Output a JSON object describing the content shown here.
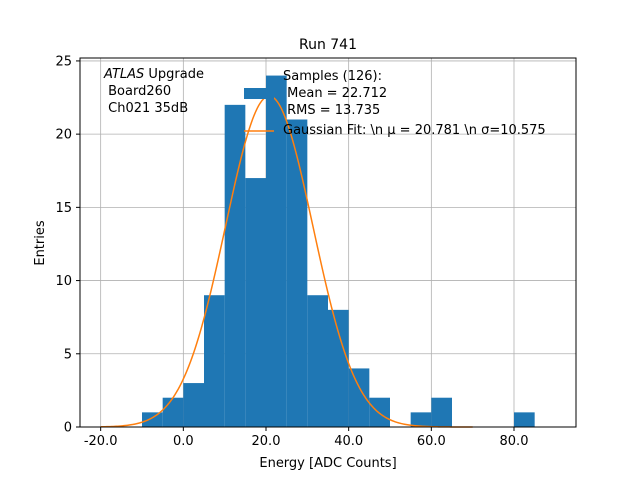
{
  "chart_data": {
    "type": "bar",
    "title": "Run 741",
    "xlabel": "Energy [ADC Counts]",
    "ylabel": "Entries",
    "xlim": [
      -25,
      95
    ],
    "ylim": [
      0,
      25.2
    ],
    "grid": true,
    "x_ticks": [
      -20,
      0,
      20,
      40,
      60,
      80
    ],
    "x_tick_labels": [
      "-20.0",
      "0.0",
      "20.0",
      "40.0",
      "60.0",
      "80.0"
    ],
    "y_ticks": [
      0,
      5,
      10,
      15,
      20,
      25
    ],
    "y_tick_labels": [
      "0",
      "5",
      "10",
      "15",
      "20",
      "25"
    ],
    "bins": [
      {
        "x0": -10,
        "x1": -5,
        "count": 1
      },
      {
        "x0": -5,
        "x1": 0,
        "count": 2
      },
      {
        "x0": 0,
        "x1": 5,
        "count": 3
      },
      {
        "x0": 5,
        "x1": 10,
        "count": 9
      },
      {
        "x0": 10,
        "x1": 15,
        "count": 22
      },
      {
        "x0": 15,
        "x1": 20,
        "count": 17
      },
      {
        "x0": 20,
        "x1": 25,
        "count": 24
      },
      {
        "x0": 25,
        "x1": 30,
        "count": 21
      },
      {
        "x0": 30,
        "x1": 35,
        "count": 9
      },
      {
        "x0": 35,
        "x1": 40,
        "count": 8
      },
      {
        "x0": 40,
        "x1": 45,
        "count": 4
      },
      {
        "x0": 45,
        "x1": 50,
        "count": 2
      },
      {
        "x0": 55,
        "x1": 60,
        "count": 1
      },
      {
        "x0": 60,
        "x1": 65,
        "count": 2
      },
      {
        "x0": 80,
        "x1": 85,
        "count": 1
      }
    ],
    "fit": {
      "mu": 20.781,
      "sigma": 10.575,
      "amplitude": 22.6,
      "x_range": [
        -20,
        70
      ]
    },
    "colors": {
      "bars": "#1f77b4",
      "fit": "#ff7f0e",
      "grid": "#b0b0b0"
    },
    "legend": {
      "placement": "top-right",
      "samples_text": "Samples (126):\n Mean = 22.712\n RMS = 13.735",
      "fit_text": "Gaussian Fit: \\n μ = 20.781 \\n σ=10.575"
    },
    "annotation": {
      "atlas_italic": "ATLAS",
      "atlas_rest": " Upgrade",
      "board": " Board260",
      "channel": " Ch021 35dB"
    }
  }
}
